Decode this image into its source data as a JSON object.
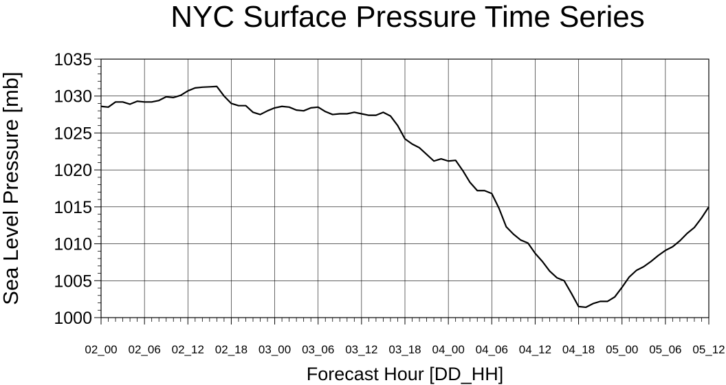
{
  "chart_data": {
    "type": "line",
    "title": "NYC Surface Pressure Time Series",
    "xlabel": "Forecast Hour [DD_HH]",
    "ylabel": "Sea Level Pressure [mb]",
    "ylim": [
      1000,
      1035
    ],
    "y_ticks": [
      1000,
      1005,
      1010,
      1015,
      1020,
      1025,
      1030,
      1035
    ],
    "x_tick_labels": [
      "02_00",
      "02_06",
      "02_12",
      "02_18",
      "03_00",
      "03_06",
      "03_12",
      "03_18",
      "04_00",
      "04_06",
      "04_12",
      "04_18",
      "05_00",
      "05_06",
      "05_12"
    ],
    "x_ticks_hours": [
      0,
      6,
      12,
      18,
      24,
      30,
      36,
      42,
      48,
      54,
      60,
      66,
      72,
      78,
      84
    ],
    "xlim_hours": [
      0,
      84
    ],
    "grid": true,
    "series": [
      {
        "color": "#000000",
        "x_hours": [
          0,
          1,
          2,
          3,
          4,
          5,
          6,
          7,
          8,
          9,
          10,
          11,
          12,
          13,
          14,
          15,
          16,
          17,
          18,
          19,
          20,
          21,
          22,
          23,
          24,
          25,
          26,
          27,
          28,
          29,
          30,
          31,
          32,
          33,
          34,
          35,
          36,
          37,
          38,
          39,
          40,
          41,
          42,
          43,
          44,
          45,
          46,
          47,
          48,
          49,
          50,
          51,
          52,
          53,
          54,
          55,
          56,
          57,
          58,
          59,
          60,
          61,
          62,
          63,
          64,
          65,
          66,
          67,
          68,
          69,
          70,
          71,
          72,
          73,
          74,
          75,
          76,
          77,
          78,
          79,
          80,
          81,
          82,
          83,
          84
        ],
        "values": [
          1028.6,
          1028.5,
          1029.2,
          1029.2,
          1028.9,
          1029.3,
          1029.2,
          1029.2,
          1029.4,
          1029.9,
          1029.8,
          1030.1,
          1030.7,
          1031.1,
          1031.2,
          1031.25,
          1031.3,
          1030.0,
          1029.0,
          1028.7,
          1028.7,
          1027.8,
          1027.5,
          1028.0,
          1028.4,
          1028.6,
          1028.5,
          1028.1,
          1028.0,
          1028.4,
          1028.5,
          1027.9,
          1027.5,
          1027.6,
          1027.6,
          1027.8,
          1027.6,
          1027.4,
          1027.4,
          1027.8,
          1027.3,
          1026.0,
          1024.2,
          1023.5,
          1023.0,
          1022.1,
          1021.2,
          1021.5,
          1021.2,
          1021.3,
          1019.9,
          1018.3,
          1017.2,
          1017.2,
          1016.8,
          1014.8,
          1012.3,
          1011.3,
          1010.5,
          1010.1,
          1008.7,
          1007.6,
          1006.3,
          1005.4,
          1005.0,
          1003.3,
          1001.5,
          1001.4,
          1001.9,
          1002.2,
          1002.2,
          1002.8,
          1004.1,
          1005.5,
          1006.4,
          1006.9,
          1007.6,
          1008.4,
          1009.1,
          1009.6,
          1010.4,
          1011.4,
          1012.2,
          1013.5,
          1015.0
        ]
      }
    ]
  }
}
